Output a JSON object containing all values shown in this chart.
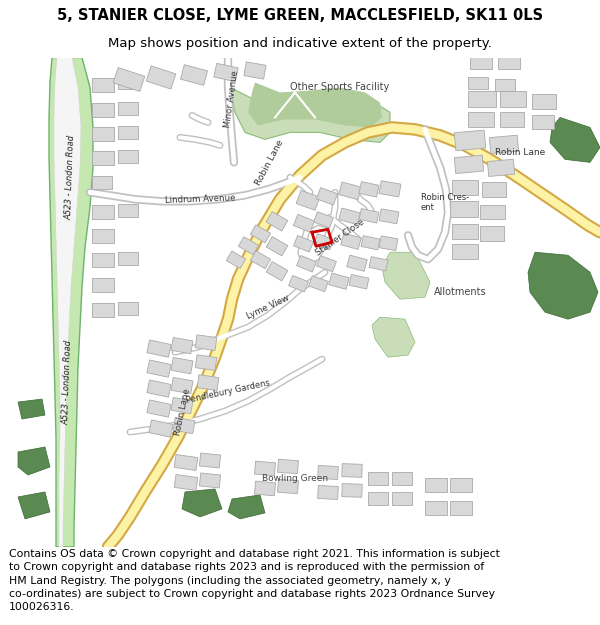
{
  "title_line1": "5, STANIER CLOSE, LYME GREEN, MACCLESFIELD, SK11 0LS",
  "title_line2": "Map shows position and indicative extent of the property.",
  "footer_text": "Contains OS data © Crown copyright and database right 2021. This information is subject to Crown copyright and database rights 2023 and is reproduced with the permission of HM Land Registry. The polygons (including the associated geometry, namely x, y co-ordinates) are subject to Crown copyright and database rights 2023 Ordnance Survey 100026316.",
  "bg_color": "#ffffff",
  "map_bg": "#f0f0f0",
  "road_yellow_fill": "#fdf3a7",
  "road_yellow_border": "#d4a843",
  "road_grey_fill": "#ffffff",
  "road_grey_border": "#c8c8c8",
  "green_light": "#c8ddb8",
  "green_dark": "#5a8a52",
  "green_med": "#7aaa6a",
  "building_fill": "#d8d8d8",
  "building_border": "#aaaaaa",
  "highlight_red": "#cc0000",
  "a523_green_fill": "#c5e8b0",
  "a523_green_border": "#6db36d",
  "title_fontsize": 10.5,
  "subtitle_fontsize": 9.5,
  "footer_fontsize": 7.8
}
